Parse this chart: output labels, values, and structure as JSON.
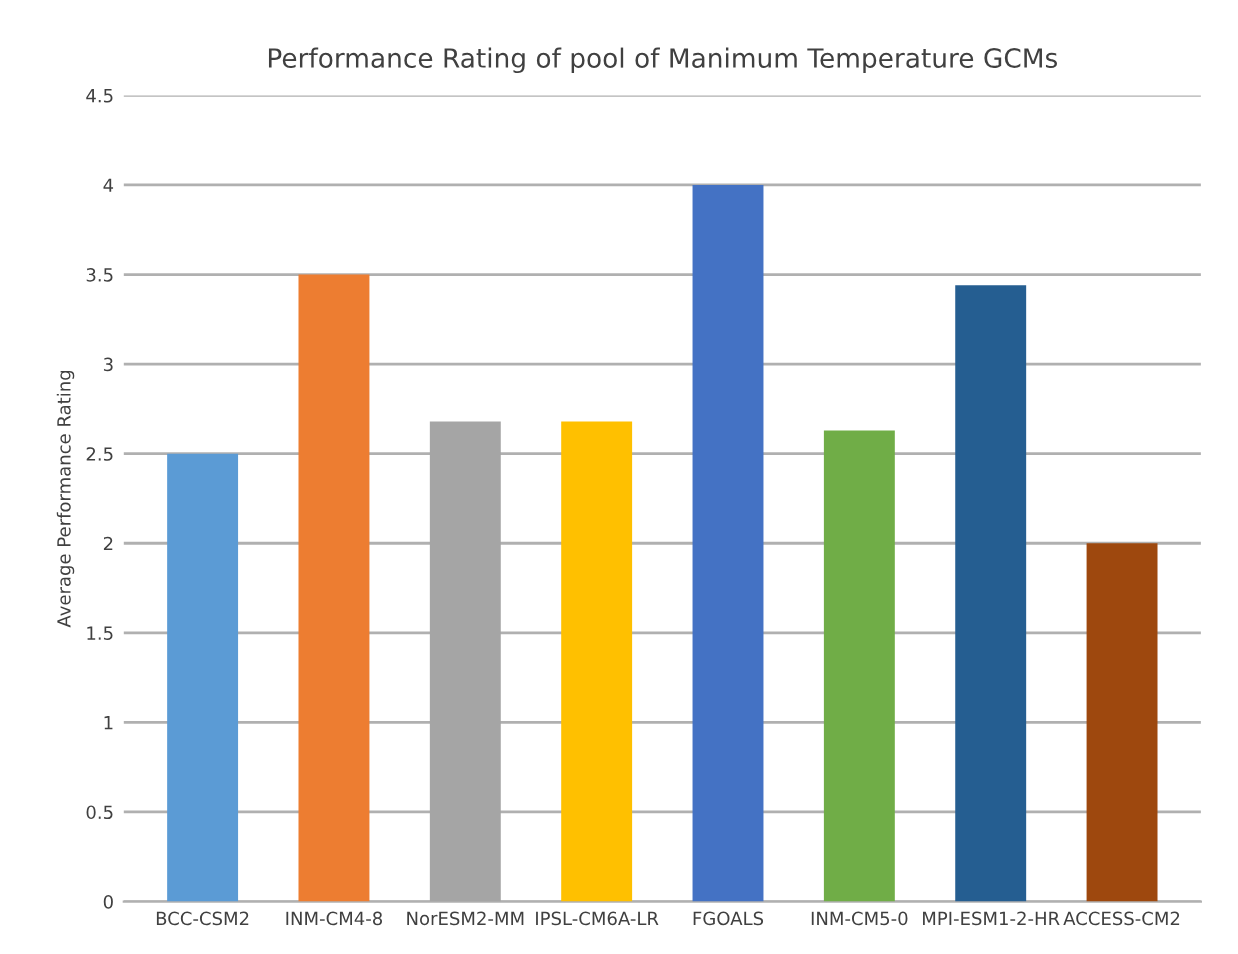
{
  "chart_data": {
    "type": "bar",
    "title": "Performance Rating of pool of Manimum Temperature GCMs",
    "ylabel": "Average Performance Rating",
    "categories": [
      "BCC-CSM2",
      "INM-CM4-8",
      "NorESM2-MM",
      "IPSL-CM6A-LR",
      "FGOALS",
      "INM-CM5-0",
      "MPI-ESM1-2-HR",
      "ACCESS-CM2"
    ],
    "values": [
      2.5,
      3.5,
      2.68,
      2.68,
      4.0,
      2.63,
      3.44,
      2.0
    ],
    "colors": [
      "#5b9bd5",
      "#ed7d31",
      "#a5a5a5",
      "#ffc000",
      "#4472c4",
      "#70ad47",
      "#255e91",
      "#9e480e"
    ],
    "ylim": [
      0,
      4.5
    ],
    "yticks": [
      0,
      0.5,
      1,
      1.5,
      2,
      2.5,
      3,
      3.5,
      4,
      4.5
    ],
    "grid": "y",
    "legend": false
  }
}
